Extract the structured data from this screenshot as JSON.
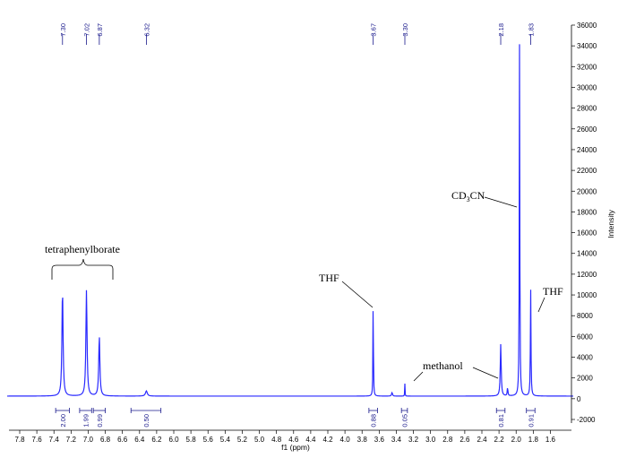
{
  "chart_data": {
    "type": "line",
    "xlabel": "f1 (ppm)",
    "ylabel": "Intensity",
    "xlim": [
      7.8,
      1.5
    ],
    "ylim": [
      -2000,
      36000
    ],
    "x_ticks": [
      "7.8",
      "7.6",
      "7.4",
      "7.2",
      "7.0",
      "6.8",
      "6.6",
      "6.4",
      "6.2",
      "6.0",
      "5.8",
      "5.6",
      "5.4",
      "5.2",
      "5.0",
      "4.8",
      "4.6",
      "4.4",
      "4.2",
      "4.0",
      "3.8",
      "3.6",
      "3.4",
      "3.2",
      "3.0",
      "2.8",
      "2.6",
      "2.4",
      "2.2",
      "2.0",
      "1.8",
      "1.6"
    ],
    "y_ticks": [
      "-2000",
      "0",
      "2000",
      "4000",
      "6000",
      "8000",
      "10000",
      "12000",
      "14000",
      "16000",
      "18000",
      "20000",
      "22000",
      "24000",
      "26000",
      "28000",
      "30000",
      "32000",
      "34000",
      "36000"
    ],
    "peak_labels": [
      "7.30",
      "7.02",
      "6.87",
      "6.32",
      "3.67",
      "3.30",
      "2.18",
      "1.83"
    ],
    "peaks": [
      {
        "ppm": 7.3,
        "height": 10300,
        "width": 0.05
      },
      {
        "ppm": 7.02,
        "height": 10200,
        "width": 0.05
      },
      {
        "ppm": 6.87,
        "height": 5800,
        "width": 0.05
      },
      {
        "ppm": 6.32,
        "height": 500,
        "width": 0.08
      },
      {
        "ppm": 3.67,
        "height": 10500,
        "width": 0.018
      },
      {
        "ppm": 3.3,
        "height": 1200,
        "width": 0.014
      },
      {
        "ppm": 3.45,
        "height": 350,
        "width": 0.04
      },
      {
        "ppm": 2.18,
        "height": 5000,
        "width": 0.04
      },
      {
        "ppm": 2.1,
        "height": 800,
        "width": 0.03
      },
      {
        "ppm": 1.96,
        "height": 34500,
        "width": 0.022
      },
      {
        "ppm": 1.83,
        "height": 10300,
        "width": 0.025
      }
    ],
    "baseline": 250,
    "integrals": [
      {
        "label": "2.00",
        "from": 7.38,
        "to": 7.22
      },
      {
        "label": "1.99",
        "from": 7.1,
        "to": 6.96
      },
      {
        "label": "0.99",
        "from": 6.94,
        "to": 6.8
      },
      {
        "label": "0.50",
        "from": 6.5,
        "to": 6.15
      },
      {
        "label": "0.88",
        "from": 3.72,
        "to": 3.62
      },
      {
        "label": "0.05",
        "from": 3.34,
        "to": 3.27
      },
      {
        "label": "0.81",
        "from": 2.23,
        "to": 2.13
      },
      {
        "label": "0.91",
        "from": 1.88,
        "to": 1.78
      }
    ],
    "annotations": {
      "tetraphenylborate": "tetraphenylborate",
      "thf_left": "THF",
      "thf_right": "THF",
      "methanol": "methanol",
      "cd3cn_main": "CD",
      "cd3cn_sub": "3",
      "cd3cn_end": "CN"
    },
    "colors": {
      "spectrum": "#2a2aff",
      "labels": "#1a1a8c"
    }
  }
}
